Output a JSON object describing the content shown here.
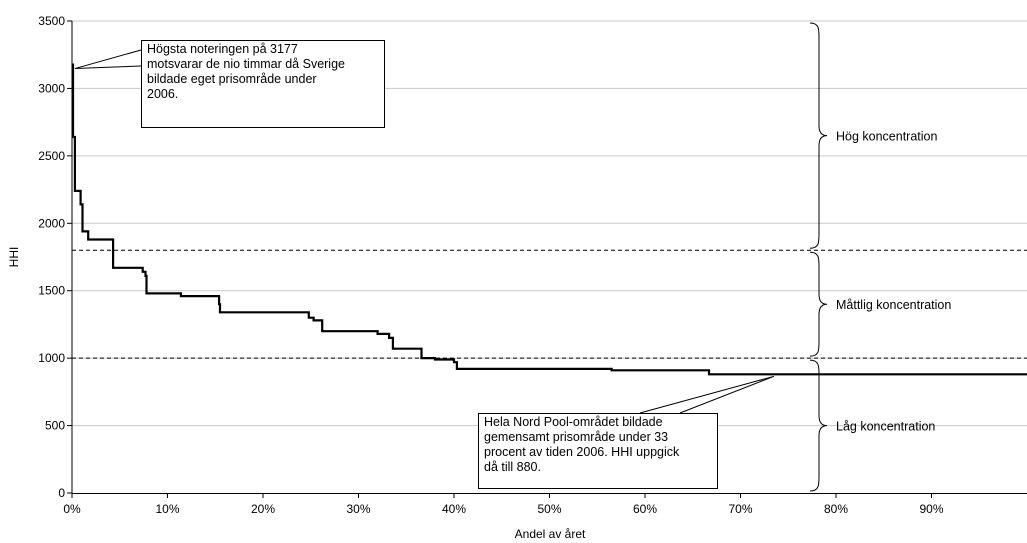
{
  "chart_data": {
    "type": "line",
    "title": "",
    "xlabel": "Andel av året",
    "ylabel": "HHI",
    "xlim": [
      0,
      1
    ],
    "ylim": [
      0,
      3500
    ],
    "y_ticks": [
      0,
      500,
      1000,
      1500,
      2000,
      2500,
      3000,
      3500
    ],
    "y_tick_labels": [
      "0",
      "500",
      "1000",
      "1500",
      "2000",
      "2500",
      "3000",
      "3500"
    ],
    "x_ticks": [
      0,
      0.1,
      0.2,
      0.3,
      0.4,
      0.5,
      0.6,
      0.7,
      0.8,
      0.9
    ],
    "x_tick_labels": [
      "0%",
      "10%",
      "20%",
      "30%",
      "40%",
      "50%",
      "60%",
      "70%",
      "80%",
      "90%"
    ],
    "grid": "horizontal",
    "series": [
      {
        "step": true,
        "points": [
          [
            0.0,
            3177
          ],
          [
            0.001,
            3177
          ],
          [
            0.001,
            2640
          ],
          [
            0.003,
            2640
          ],
          [
            0.003,
            2240
          ],
          [
            0.009,
            2240
          ],
          [
            0.009,
            2140
          ],
          [
            0.011,
            2140
          ],
          [
            0.011,
            1940
          ],
          [
            0.017,
            1940
          ],
          [
            0.017,
            1880
          ],
          [
            0.043,
            1880
          ],
          [
            0.043,
            1670
          ],
          [
            0.074,
            1670
          ],
          [
            0.074,
            1640
          ],
          [
            0.077,
            1640
          ],
          [
            0.077,
            1610
          ],
          [
            0.078,
            1610
          ],
          [
            0.078,
            1480
          ],
          [
            0.114,
            1480
          ],
          [
            0.114,
            1460
          ],
          [
            0.154,
            1460
          ],
          [
            0.154,
            1400
          ],
          [
            0.155,
            1400
          ],
          [
            0.155,
            1340
          ],
          [
            0.248,
            1340
          ],
          [
            0.248,
            1300
          ],
          [
            0.253,
            1300
          ],
          [
            0.253,
            1280
          ],
          [
            0.262,
            1280
          ],
          [
            0.262,
            1200
          ],
          [
            0.32,
            1200
          ],
          [
            0.32,
            1180
          ],
          [
            0.332,
            1180
          ],
          [
            0.332,
            1150
          ],
          [
            0.336,
            1150
          ],
          [
            0.336,
            1070
          ],
          [
            0.366,
            1070
          ],
          [
            0.366,
            1000
          ],
          [
            0.38,
            1000
          ],
          [
            0.38,
            990
          ],
          [
            0.4,
            990
          ],
          [
            0.4,
            970
          ],
          [
            0.403,
            970
          ],
          [
            0.403,
            920
          ],
          [
            0.565,
            920
          ],
          [
            0.565,
            910
          ],
          [
            0.667,
            910
          ],
          [
            0.667,
            880
          ],
          [
            1.0,
            880
          ]
        ]
      }
    ],
    "thresholds": [
      {
        "y": 1800,
        "style": "dashed"
      },
      {
        "y": 1000,
        "style": "dashed"
      }
    ],
    "regions": [
      {
        "label": "Hög koncentration",
        "from": 1800,
        "to": 3500
      },
      {
        "label": "Måttlig koncentration",
        "from": 1000,
        "to": 1800
      },
      {
        "label": "Låg koncentration",
        "from": 0,
        "to": 1000
      }
    ],
    "annotations": [
      {
        "id": "peak",
        "lines": [
          "Högsta noteringen på 3177",
          "motsvarar de nio timmar då Sverige",
          "bildade eget prisområde under",
          "2006."
        ],
        "target": [
          0.003,
          3177
        ]
      },
      {
        "id": "common",
        "lines": [
          "Hela Nord Pool-området bildade",
          "gemensamt prisområde under 33",
          "procent av tiden 2006. HHI uppgick",
          "då till 880."
        ],
        "target": [
          0.735,
          880
        ]
      }
    ]
  }
}
